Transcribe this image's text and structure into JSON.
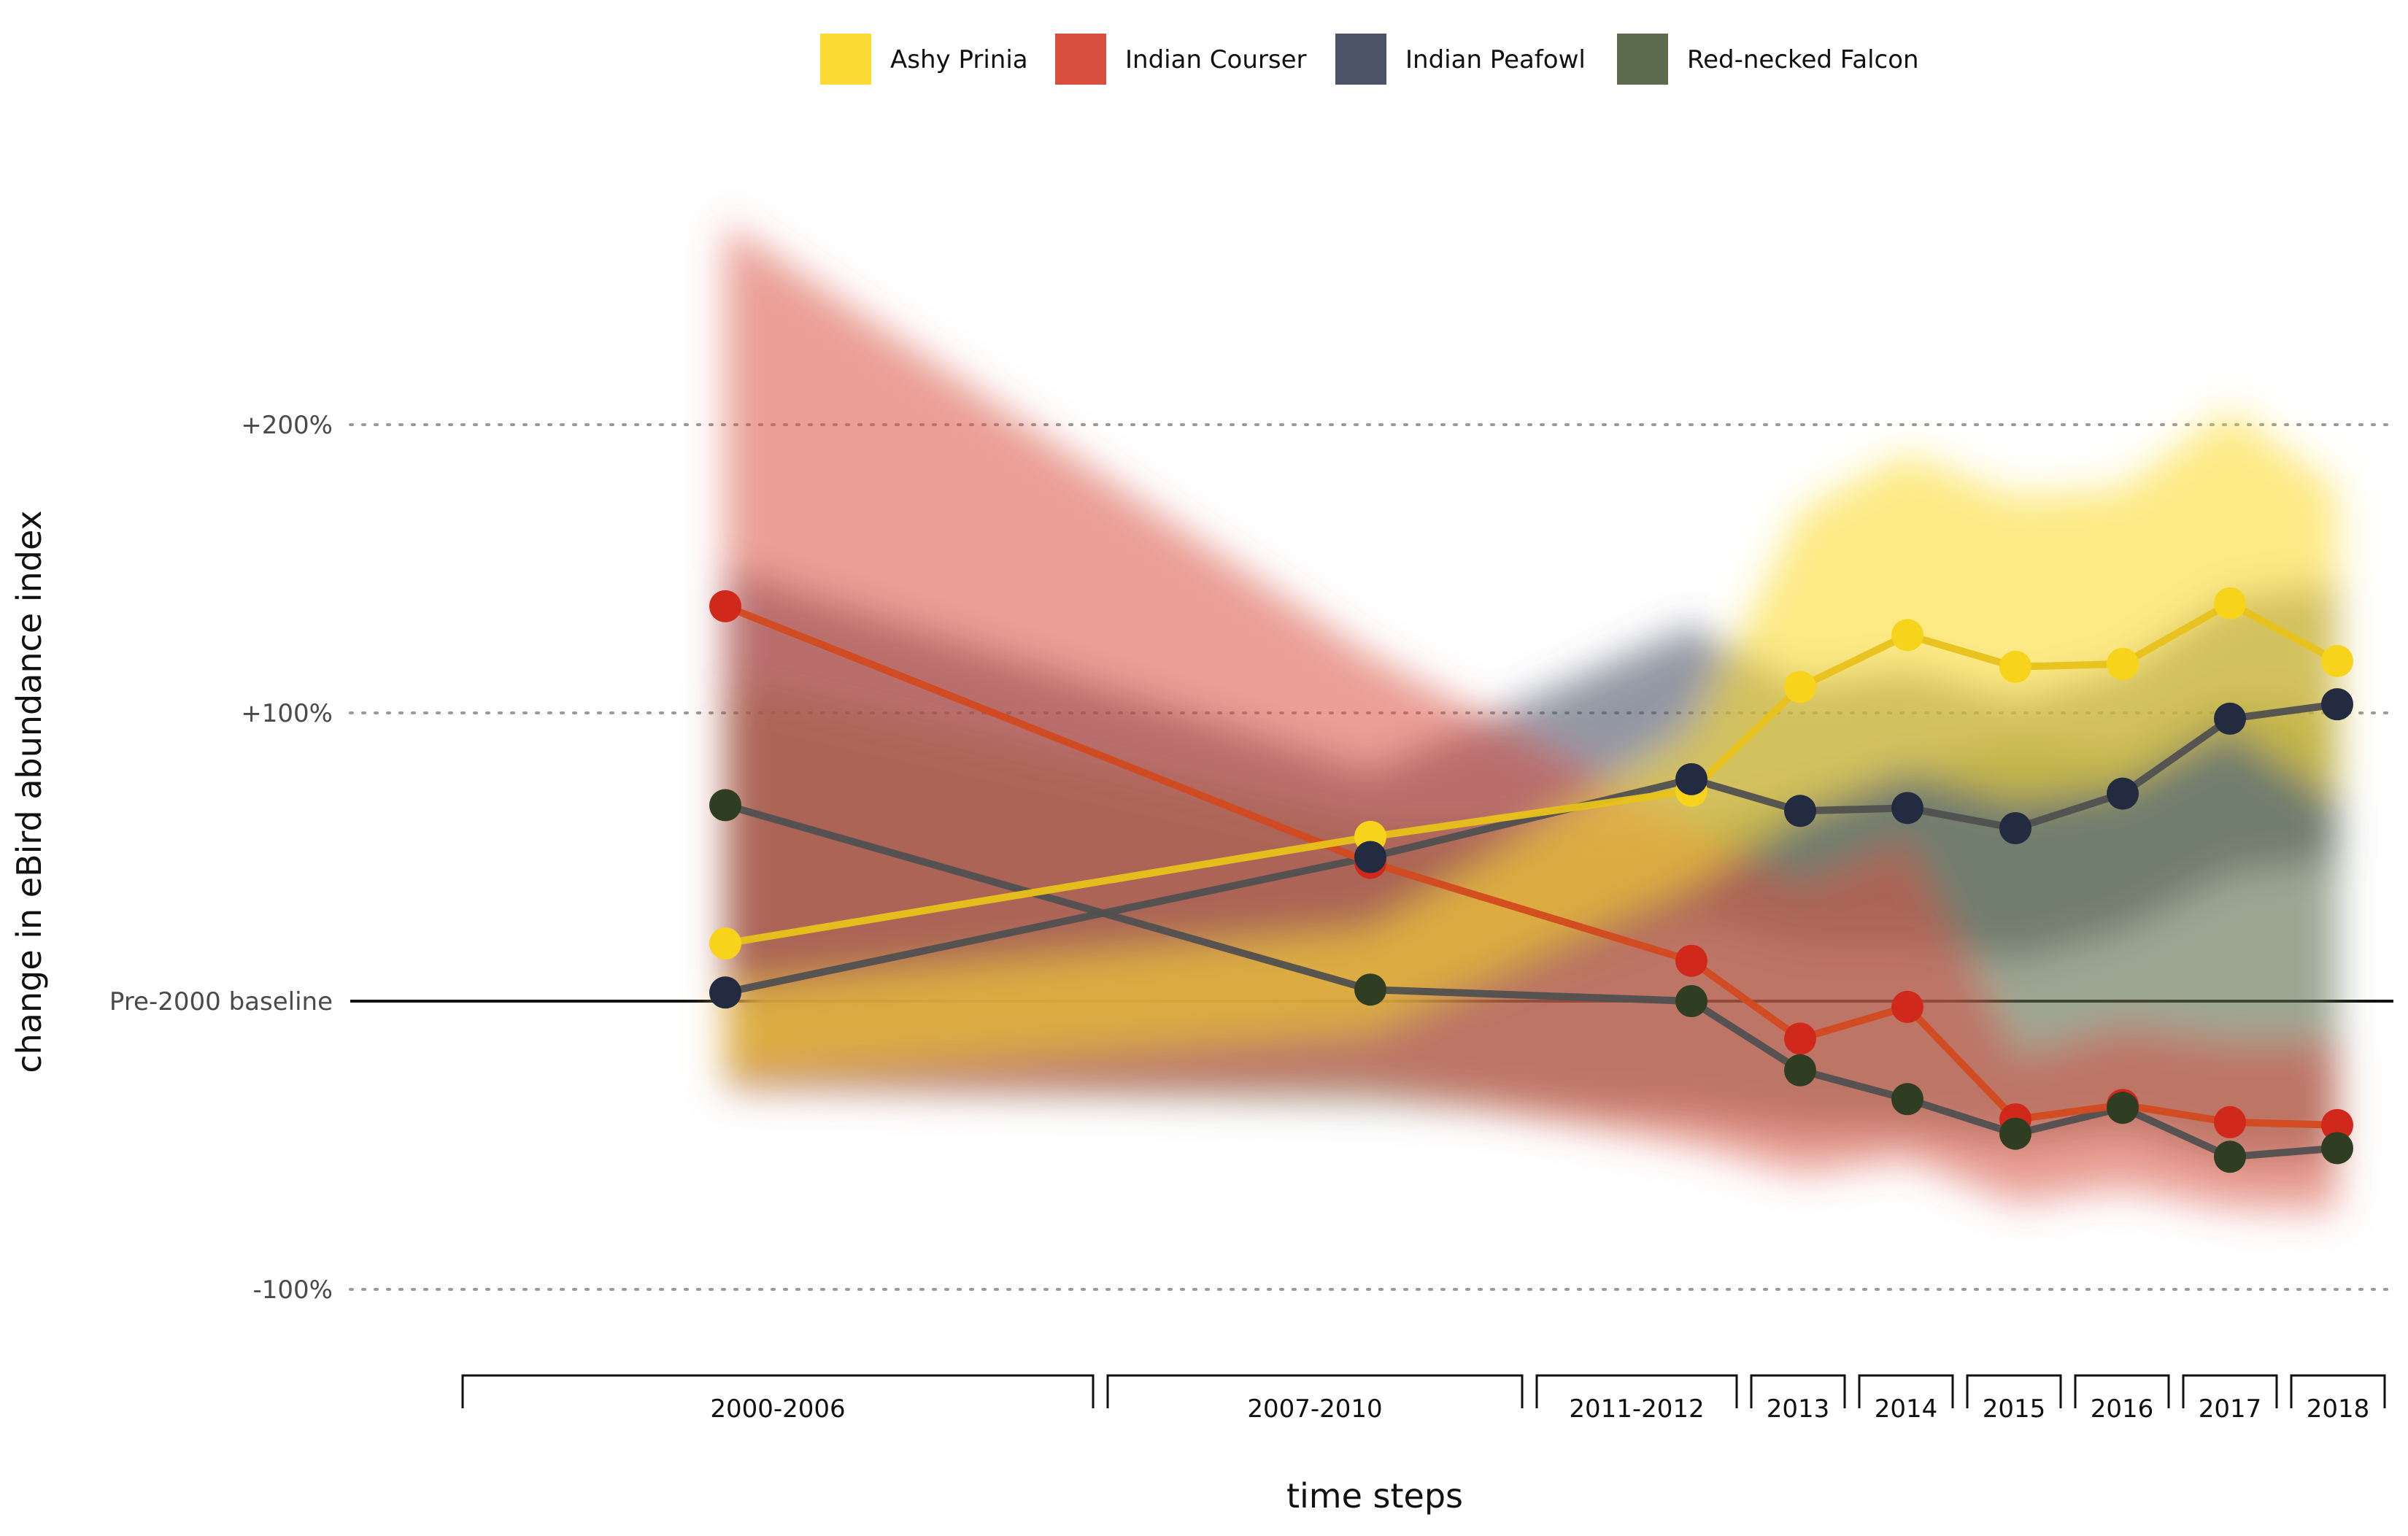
{
  "chart_data": {
    "type": "line",
    "xlabel": "time steps",
    "ylabel": "change in eBird abundance index",
    "categories": [
      "2000-2006",
      "2007-2010",
      "2011-2012",
      "2013",
      "2014",
      "2015",
      "2016",
      "2017",
      "2018"
    ],
    "y_ticks": [
      {
        "value": 200,
        "label": "+200%"
      },
      {
        "value": 100,
        "label": "+100%"
      },
      {
        "value": 0,
        "label": "Pre-2000 baseline"
      },
      {
        "value": -100,
        "label": "-100%"
      }
    ],
    "ylim": [
      -130,
      270
    ],
    "grid": "horizontal dotted",
    "legend_position": "top",
    "series": [
      {
        "name": "Ashy Prinia",
        "color": "#fcdc34",
        "point_color": "#f7d31c",
        "line_color": "#e8c21a",
        "values": [
          20,
          57,
          73,
          109,
          127,
          116,
          117,
          138,
          118
        ],
        "upper": [
          5,
          25,
          92,
          170,
          190,
          175,
          178,
          205,
          178
        ],
        "lower": [
          -25,
          -10,
          40,
          65,
          80,
          70,
          75,
          95,
          70
        ]
      },
      {
        "name": "Indian Courser",
        "color": "#d94f3f",
        "point_color": "#d0281b",
        "line_color": "#d24a1f",
        "values": [
          137,
          48,
          14,
          -13,
          -2,
          -41,
          -36,
          -42,
          -43
        ],
        "upper": [
          270,
          120,
          60,
          40,
          55,
          -20,
          -10,
          -15,
          -15
        ],
        "lower": [
          -30,
          -30,
          -50,
          -60,
          -55,
          -70,
          -65,
          -72,
          -73
        ]
      },
      {
        "name": "Indian Peafowl",
        "color": "#4d5468",
        "point_color": "#232b40",
        "line_color": "#505050",
        "values": [
          3,
          50,
          77,
          66,
          67,
          60,
          72,
          98,
          103
        ],
        "upper": [
          150,
          80,
          130,
          110,
          115,
          105,
          115,
          140,
          145
        ],
        "lower": [
          -20,
          -10,
          30,
          20,
          20,
          15,
          25,
          45,
          50
        ]
      },
      {
        "name": "Red-necked Falcon",
        "color": "#5b6b4b",
        "point_color": "#2f3e22",
        "line_color": "#505050",
        "values": [
          68,
          4,
          0,
          -24,
          -34,
          -46,
          -37,
          -54,
          -51
        ],
        "upper": [
          110,
          60,
          60,
          70,
          80,
          90,
          85,
          105,
          100
        ],
        "lower": [
          -30,
          -35,
          -40,
          -45,
          -45,
          -50,
          -45,
          -55,
          -55
        ]
      }
    ]
  }
}
